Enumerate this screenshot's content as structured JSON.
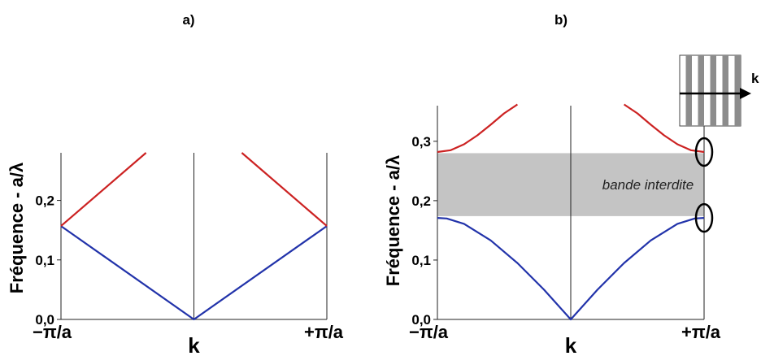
{
  "chart_data": [
    {
      "type": "line",
      "panel_label": "a)",
      "ylabel": "Fréquence - a/λ",
      "xlabel": "k",
      "x_tick_labels": [
        "−π/a",
        "+π/a"
      ],
      "xlim": [
        -1,
        1
      ],
      "ylim": [
        0,
        0.28
      ],
      "y_ticks": [
        0.0,
        0.1,
        0.2
      ],
      "y_tick_labels": [
        "0,0",
        "0,1",
        "0,2"
      ],
      "series": [
        {
          "color": "#2233aa",
          "x": [
            -1,
            0,
            1
          ],
          "y": [
            0.157,
            0.0,
            0.157
          ]
        },
        {
          "color": "#cc2222",
          "x": [
            -1,
            -0.36
          ],
          "y": [
            0.157,
            0.28
          ]
        },
        {
          "color": "#cc2222",
          "x": [
            0.36,
            1
          ],
          "y": [
            0.28,
            0.157
          ]
        }
      ]
    },
    {
      "type": "line",
      "panel_label": "b)",
      "ylabel": "Fréquence - a/λ",
      "xlabel": "k",
      "x_tick_labels": [
        "−π/a",
        "+π/a"
      ],
      "xlim": [
        -1,
        1
      ],
      "ylim": [
        0,
        0.36
      ],
      "y_ticks": [
        0.0,
        0.1,
        0.2,
        0.3
      ],
      "y_tick_labels": [
        "0,0",
        "0,1",
        "0,2",
        "0,3"
      ],
      "band": {
        "label": "bande interdite",
        "from": 0.174,
        "to": 0.28,
        "color": "#c4c4c4"
      },
      "series": [
        {
          "color": "#2233aa",
          "x": [
            -1,
            -0.93,
            -0.8,
            -0.6,
            -0.4,
            -0.2,
            0,
            0.2,
            0.4,
            0.6,
            0.8,
            0.93,
            1
          ],
          "y": [
            0.171,
            0.17,
            0.161,
            0.133,
            0.095,
            0.05,
            0.0,
            0.05,
            0.095,
            0.133,
            0.161,
            0.17,
            0.171
          ]
        },
        {
          "color": "#cc2222",
          "x": [
            -1,
            -0.9,
            -0.8,
            -0.7,
            -0.6,
            -0.5,
            -0.4
          ],
          "y": [
            0.282,
            0.285,
            0.295,
            0.31,
            0.328,
            0.347,
            0.362
          ]
        },
        {
          "color": "#cc2222",
          "x": [
            0.4,
            0.5,
            0.6,
            0.7,
            0.8,
            0.9,
            1
          ],
          "y": [
            0.362,
            0.347,
            0.328,
            0.31,
            0.295,
            0.285,
            0.282
          ]
        }
      ],
      "inset": {
        "label": "k",
        "stripes": 5
      }
    }
  ]
}
